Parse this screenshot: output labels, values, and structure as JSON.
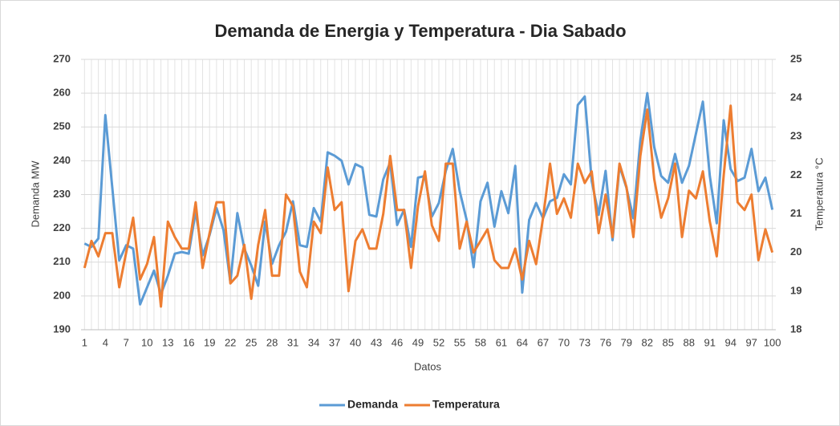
{
  "chart_data": {
    "type": "line",
    "title": "Demanda de Energia y Temperatura - Dia Sabado",
    "x_label": "Datos",
    "y_label": "Demanda MW",
    "y2_label": "Temperatura °C",
    "categories": [
      "1",
      null,
      null,
      "4",
      null,
      null,
      "7",
      null,
      null,
      "10",
      null,
      null,
      "13",
      null,
      null,
      "16",
      null,
      null,
      "19",
      null,
      null,
      "22",
      null,
      null,
      "25",
      null,
      null,
      "28",
      null,
      null,
      "31",
      null,
      null,
      "34",
      null,
      null,
      "37",
      null,
      null,
      "40",
      null,
      null,
      "43",
      null,
      null,
      "46",
      null,
      null,
      "49",
      null,
      null,
      "52",
      null,
      null,
      "55",
      null,
      null,
      "58",
      null,
      null,
      "61",
      null,
      null,
      "64",
      null,
      null,
      "67",
      null,
      null,
      "70",
      null,
      null,
      "73",
      null,
      null,
      "76",
      null,
      null,
      "79",
      null,
      null,
      "82",
      null,
      null,
      "85",
      null,
      null,
      "88",
      null,
      null,
      "91",
      null,
      null,
      "94",
      null,
      null,
      "97",
      null,
      null,
      "100"
    ],
    "series": [
      {
        "name": "Demanda",
        "color": "#5b9bd5",
        "axis": "y",
        "values": [
          215.5,
          214.5,
          217,
          253.5,
          232,
          210.5,
          215,
          214,
          197.5,
          202.5,
          207.5,
          200.5,
          206,
          212.5,
          213,
          212.5,
          225,
          212,
          218,
          226,
          219.5,
          204,
          224.5,
          214,
          209,
          203,
          222,
          209.5,
          215,
          219,
          228,
          215,
          214.5,
          226,
          222,
          242.5,
          241.5,
          240,
          233,
          239,
          238,
          224,
          223.5,
          234.5,
          239.5,
          221,
          225.5,
          214.5,
          235,
          235.5,
          223.5,
          227.5,
          237,
          243.5,
          231,
          222.5,
          208.5,
          228,
          233.5,
          220.5,
          231,
          224.5,
          238.5,
          201,
          222.5,
          227.5,
          223,
          228,
          229,
          236,
          233,
          256.5,
          259,
          234,
          224,
          237,
          216.5,
          238.5,
          232,
          223,
          246,
          260,
          244,
          235.5,
          233.5,
          242,
          233.5,
          238.5,
          248,
          257.5,
          235.5,
          221.5,
          252,
          237.5,
          234,
          235,
          243.5,
          231,
          235,
          225.5
        ]
      },
      {
        "name": "Temperatura",
        "color": "#ed7d31",
        "axis": "y2",
        "values": [
          19.6,
          20.3,
          19.9,
          20.5,
          20.5,
          19.1,
          20.0,
          20.9,
          19.3,
          19.7,
          20.4,
          18.6,
          20.8,
          20.4,
          20.1,
          20.1,
          21.3,
          19.6,
          20.5,
          21.3,
          21.3,
          19.2,
          19.4,
          20.2,
          18.8,
          20.2,
          21.1,
          19.4,
          19.4,
          21.5,
          21.2,
          19.5,
          19.1,
          20.8,
          20.5,
          22.2,
          21.1,
          21.3,
          19.0,
          20.3,
          20.6,
          20.1,
          20.1,
          21.0,
          22.5,
          21.1,
          21.1,
          19.6,
          21.2,
          22.1,
          20.7,
          20.3,
          22.3,
          22.3,
          20.1,
          20.8,
          20.0,
          20.3,
          20.6,
          19.8,
          19.6,
          19.6,
          20.1,
          19.3,
          20.3,
          19.7,
          20.9,
          22.3,
          21.0,
          21.4,
          20.9,
          22.3,
          21.8,
          22.1,
          20.5,
          21.5,
          20.4,
          22.3,
          21.7,
          20.4,
          22.5,
          23.7,
          21.9,
          20.9,
          21.4,
          22.3,
          20.4,
          21.6,
          21.4,
          22.1,
          20.8,
          19.9,
          22.0,
          23.8,
          21.3,
          21.1,
          21.5,
          19.8,
          20.6,
          20.0
        ]
      }
    ],
    "ylim": [
      190,
      270
    ],
    "yticks": [
      190,
      200,
      210,
      220,
      230,
      240,
      250,
      260,
      270
    ],
    "y2lim": [
      18,
      25
    ],
    "y2ticks": [
      18,
      19,
      20,
      21,
      22,
      23,
      24,
      25
    ],
    "grid": true,
    "legend": "bottom"
  }
}
